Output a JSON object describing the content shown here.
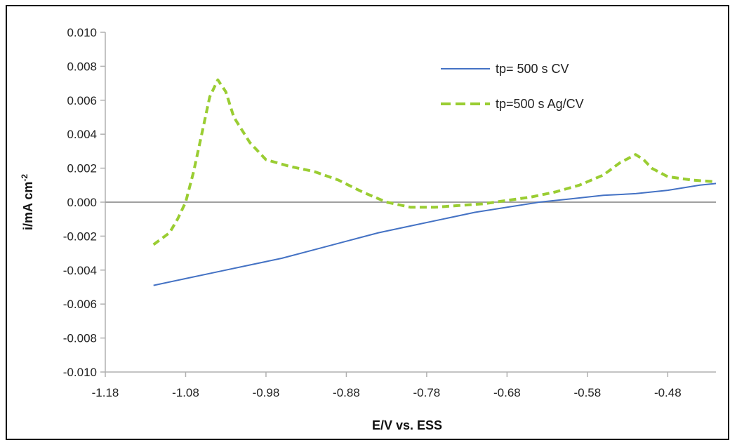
{
  "chart_data": {
    "type": "line",
    "title": "",
    "xlabel": "E/V vs. ESS",
    "ylabel_main": "i/mA cm",
    "ylabel_sup": "-2",
    "xlim": [
      -1.18,
      -0.42
    ],
    "ylim": [
      -0.01,
      0.01
    ],
    "xticks": [
      -1.18,
      -1.08,
      -0.98,
      -0.88,
      -0.78,
      -0.68,
      -0.58,
      -0.48
    ],
    "xtick_labels": [
      "-1.18",
      "-1.08",
      "-0.98",
      "-0.88",
      "-0.78",
      "-0.68",
      "-0.58",
      "-0.48"
    ],
    "yticks": [
      0.01,
      0.008,
      0.006,
      0.004,
      0.002,
      0.0,
      -0.002,
      -0.004,
      -0.006,
      -0.008,
      -0.01
    ],
    "ytick_labels": [
      "0.010",
      "0.008",
      "0.006",
      "0.004",
      "0.002",
      "0.000",
      "-0.002",
      "-0.004",
      "-0.006",
      "-0.008",
      "-0.010"
    ],
    "zero_line": true,
    "grid": false,
    "legend_position": "top-right",
    "series": [
      {
        "name": "tp= 500 s CV",
        "color": "#4472c4",
        "style": "solid",
        "x": [
          -1.12,
          -1.08,
          -1.04,
          -1.0,
          -0.96,
          -0.92,
          -0.88,
          -0.84,
          -0.8,
          -0.76,
          -0.72,
          -0.68,
          -0.64,
          -0.6,
          -0.56,
          -0.52,
          -0.48,
          -0.44,
          -0.42
        ],
        "y": [
          -0.0049,
          -0.0045,
          -0.0041,
          -0.0037,
          -0.0033,
          -0.0028,
          -0.0023,
          -0.0018,
          -0.0014,
          -0.001,
          -0.0006,
          -0.0003,
          0.0,
          0.0002,
          0.0004,
          0.0005,
          0.0007,
          0.001,
          0.0011
        ]
      },
      {
        "name": "tp=500 s Ag/CV",
        "color": "#9acd32",
        "style": "dashed",
        "x": [
          -1.12,
          -1.1,
          -1.09,
          -1.08,
          -1.07,
          -1.06,
          -1.05,
          -1.04,
          -1.03,
          -1.02,
          -1.0,
          -0.98,
          -0.95,
          -0.92,
          -0.89,
          -0.86,
          -0.83,
          -0.8,
          -0.77,
          -0.74,
          -0.71,
          -0.68,
          -0.65,
          -0.62,
          -0.59,
          -0.56,
          -0.54,
          -0.52,
          -0.51,
          -0.5,
          -0.48,
          -0.45,
          -0.42
        ],
        "y": [
          -0.0025,
          -0.0018,
          -0.001,
          0.0,
          0.0018,
          0.004,
          0.0062,
          0.0072,
          0.0065,
          0.005,
          0.0035,
          0.0025,
          0.0021,
          0.0018,
          0.0013,
          0.0006,
          0.0,
          -0.0003,
          -0.0003,
          -0.0002,
          -0.0001,
          0.0001,
          0.0003,
          0.0006,
          0.001,
          0.0016,
          0.0023,
          0.0028,
          0.0025,
          0.002,
          0.0015,
          0.0013,
          0.0012
        ]
      }
    ]
  }
}
